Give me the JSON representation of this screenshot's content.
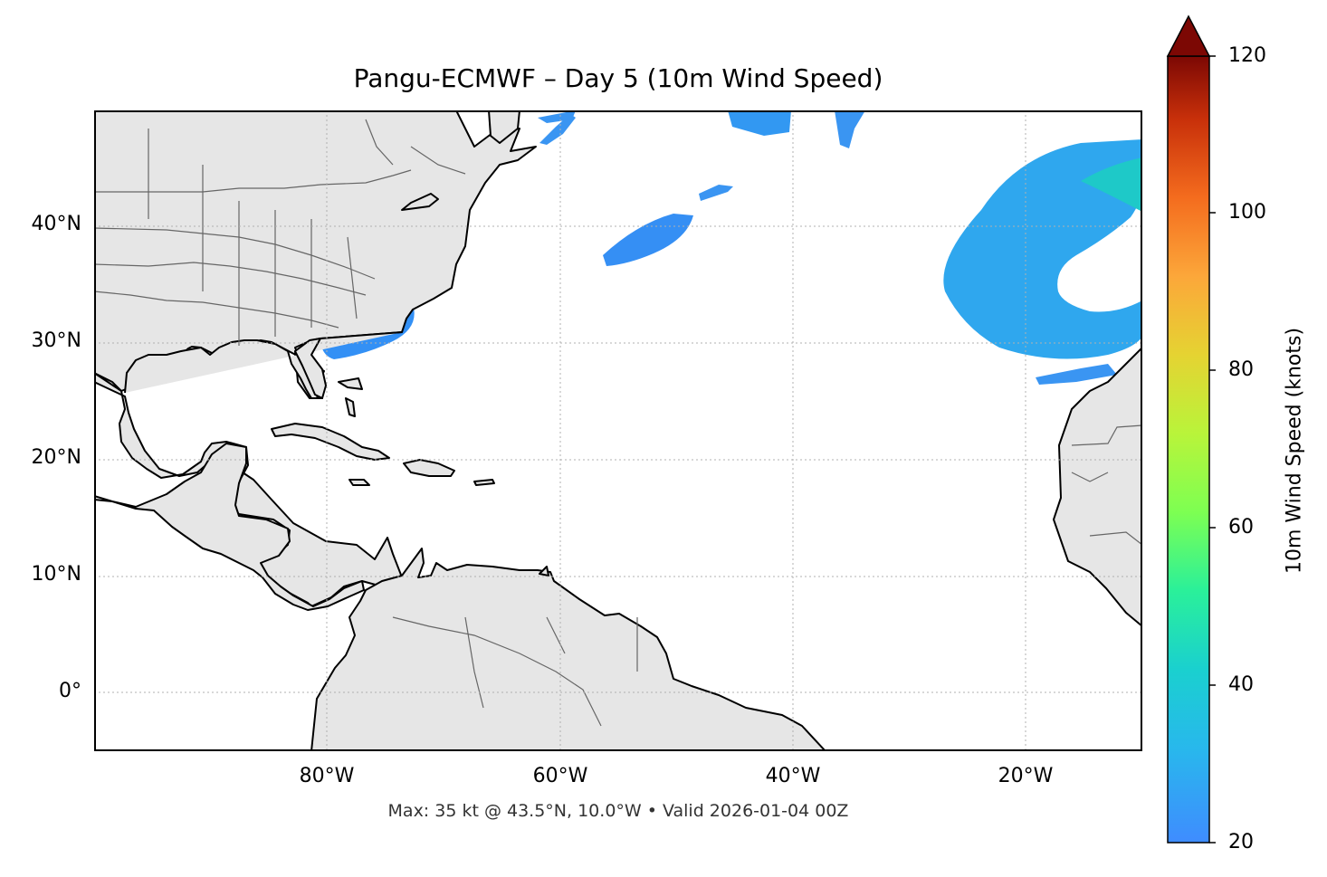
{
  "title": "Pangu-ECMWF – Day 5 (10m Wind Speed)",
  "map": {
    "lon_range": [
      -100,
      -10
    ],
    "lat_range": [
      -5,
      50
    ],
    "lat_ticks": [
      {
        "value": 40,
        "label": "40°N"
      },
      {
        "value": 30,
        "label": "30°N"
      },
      {
        "value": 20,
        "label": "20°N"
      },
      {
        "value": 10,
        "label": "10°N"
      },
      {
        "value": 0,
        "label": "0°"
      }
    ],
    "lon_ticks": [
      {
        "value": -80,
        "label": "80°W"
      },
      {
        "value": -60,
        "label": "60°W"
      },
      {
        "value": -40,
        "label": "40°W"
      },
      {
        "value": -20,
        "label": "20°W"
      }
    ],
    "land_color": "#e6e6e6",
    "coast_color": "#000000",
    "border_color": "#666666",
    "gridlines": true
  },
  "footnote": "Max: 35 kt @ 43.5°N, 10.0°W • Valid 2026-01-04 00Z",
  "colorbar": {
    "label": "10m Wind Speed (knots)",
    "min": 20,
    "max": 120,
    "extend": "max",
    "ticks": [
      "20",
      "40",
      "60",
      "80",
      "100",
      "120"
    ],
    "colormap": "turbo"
  },
  "wind_areas": [
    {
      "name": "off-carolinas",
      "peak_kt": 25
    },
    {
      "name": "off-northeast-us",
      "peak_kt": 24
    },
    {
      "name": "central-north-atlantic",
      "peak_kt": 25
    },
    {
      "name": "northeast-atlantic-low",
      "peak_kt": 35
    }
  ]
}
